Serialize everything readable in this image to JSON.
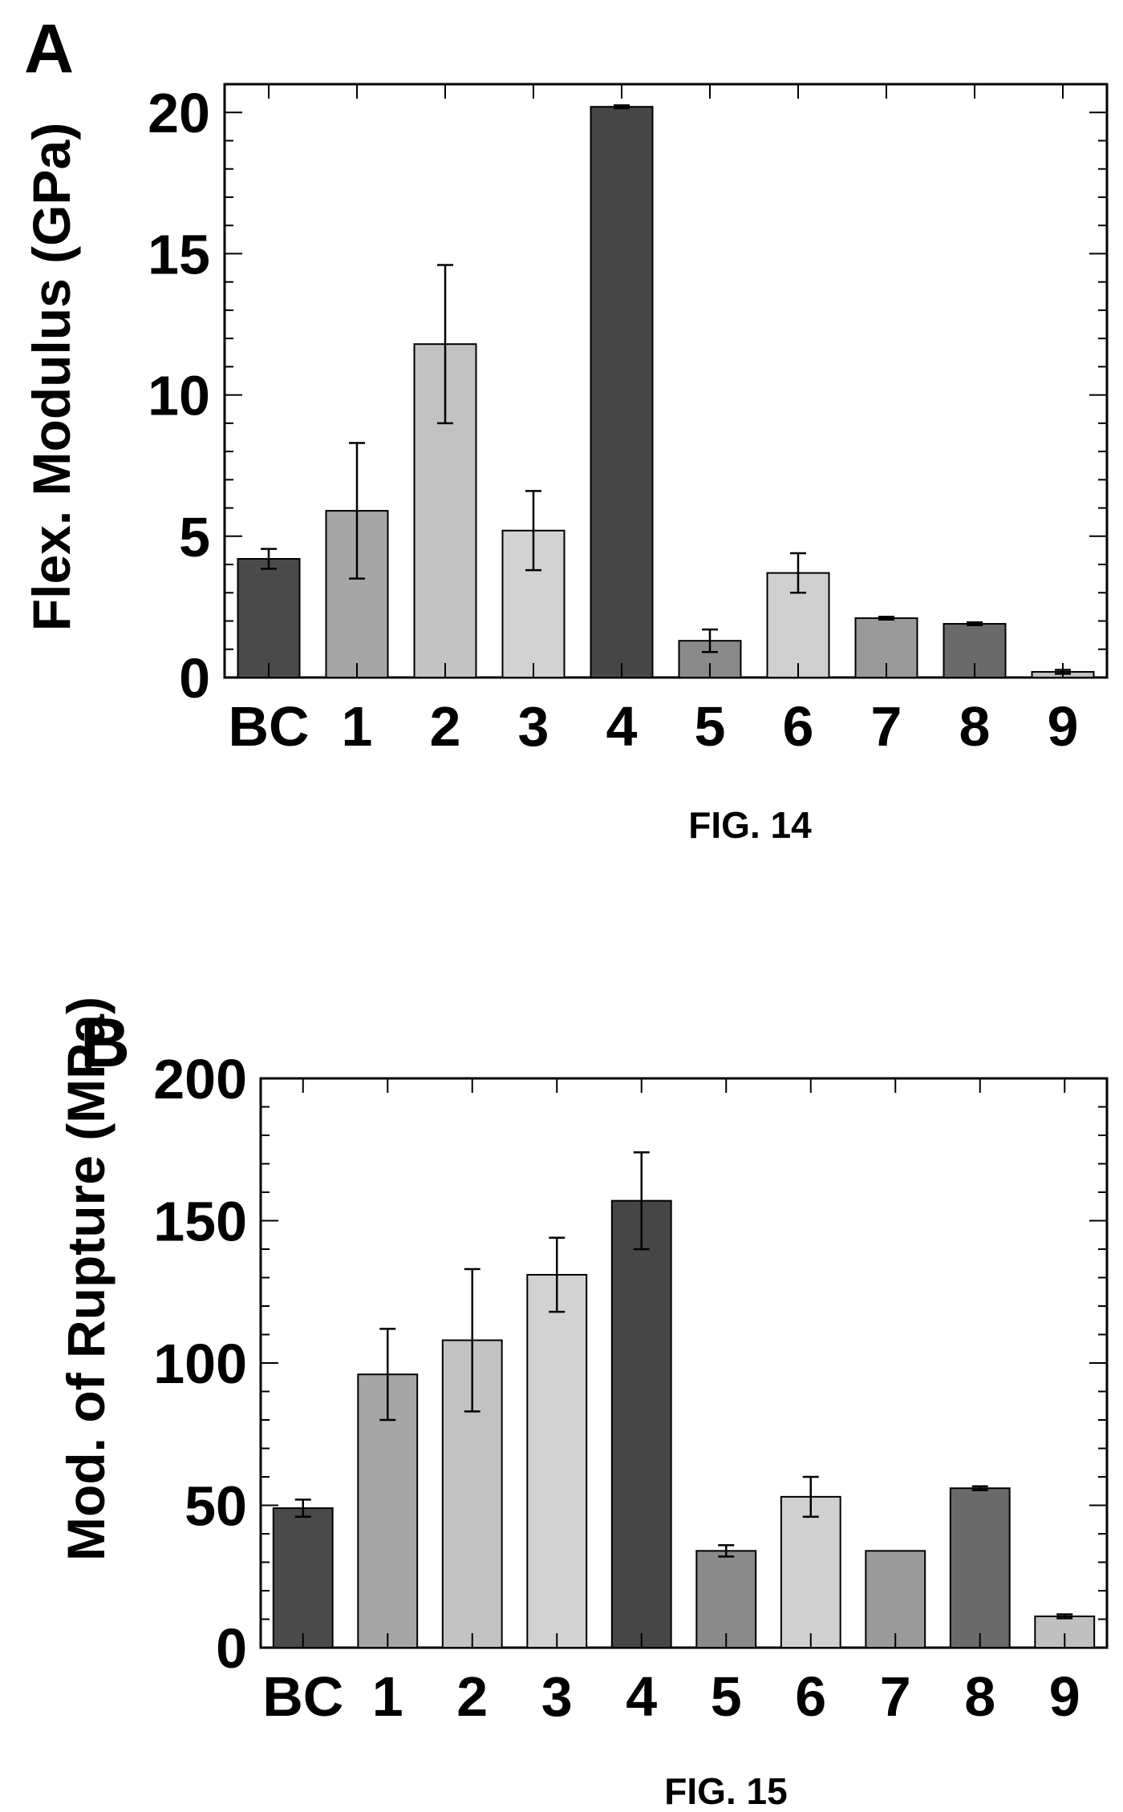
{
  "chart_data": [
    {
      "type": "bar",
      "panel_label": "A",
      "figure_caption": "FIG. 14",
      "title": "",
      "xlabel": "",
      "ylabel": "Flex. Modulus (GPa)",
      "ylim": [
        0,
        21
      ],
      "yticks": [
        0,
        5,
        10,
        15,
        20
      ],
      "categories": [
        "BC",
        "1",
        "2",
        "3",
        "4",
        "5",
        "6",
        "7",
        "8",
        "9"
      ],
      "values": [
        4.2,
        5.9,
        11.8,
        5.2,
        20.2,
        1.3,
        3.7,
        2.1,
        1.9,
        0.2
      ],
      "errors": [
        0.35,
        2.4,
        2.8,
        1.4,
        0.05,
        0.4,
        0.7,
        0.05,
        0.05,
        0.07
      ],
      "bar_colors": [
        "#4a4a4a",
        "#a6a6a6",
        "#c2c2c2",
        "#d2d2d2",
        "#464646",
        "#8a8a8a",
        "#d0d0d0",
        "#9a9a9a",
        "#6a6a6a",
        "#c0c0c0"
      ],
      "grid": false
    },
    {
      "type": "bar",
      "panel_label": "B",
      "figure_caption": "FIG. 15",
      "title": "",
      "xlabel": "",
      "ylabel": "Mod. of Rupture (MPa)",
      "ylim": [
        0,
        200
      ],
      "yticks": [
        0,
        50,
        100,
        150,
        200
      ],
      "categories": [
        "BC",
        "1",
        "2",
        "3",
        "4",
        "5",
        "6",
        "7",
        "8",
        "9"
      ],
      "values": [
        49,
        96,
        108,
        131,
        157,
        34,
        53,
        34,
        56,
        11
      ],
      "errors": [
        3,
        16,
        25,
        13,
        17,
        2,
        7,
        0,
        0.7,
        0.7
      ],
      "bar_colors": [
        "#4a4a4a",
        "#a6a6a6",
        "#c2c2c2",
        "#d2d2d2",
        "#464646",
        "#8a8a8a",
        "#d0d0d0",
        "#9a9a9a",
        "#6a6a6a",
        "#c0c0c0"
      ],
      "grid": false
    }
  ]
}
